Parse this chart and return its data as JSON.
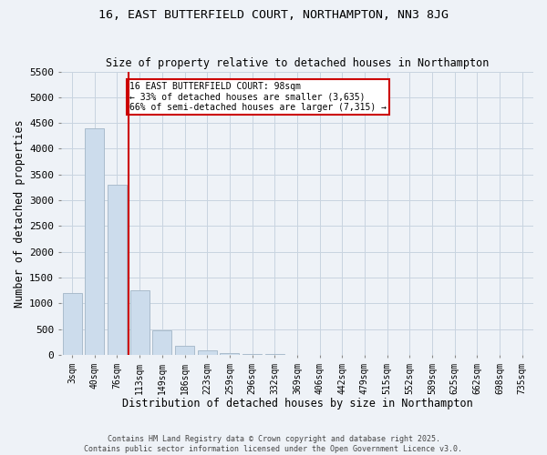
{
  "title": "16, EAST BUTTERFIELD COURT, NORTHAMPTON, NN3 8JG",
  "subtitle": "Size of property relative to detached houses in Northampton",
  "xlabel": "Distribution of detached houses by size in Northampton",
  "ylabel": "Number of detached properties",
  "bar_color": "#ccdcec",
  "bar_edgecolor": "#aabccc",
  "line_color": "#cc0000",
  "annotation_text": "16 EAST BUTTERFIELD COURT: 98sqm\n← 33% of detached houses are smaller (3,635)\n66% of semi-detached houses are larger (7,315) →",
  "annotation_box_color": "#ffffff",
  "annotation_edge_color": "#cc0000",
  "property_size_bin": 2,
  "categories": [
    "3sqm",
    "40sqm",
    "76sqm",
    "113sqm",
    "149sqm",
    "186sqm",
    "223sqm",
    "259sqm",
    "296sqm",
    "332sqm",
    "369sqm",
    "406sqm",
    "442sqm",
    "479sqm",
    "515sqm",
    "552sqm",
    "589sqm",
    "625sqm",
    "662sqm",
    "698sqm",
    "735sqm"
  ],
  "values": [
    1200,
    4400,
    3300,
    1250,
    480,
    180,
    90,
    40,
    20,
    10,
    5,
    3,
    2,
    1,
    1,
    0,
    0,
    0,
    0,
    0,
    0
  ],
  "ylim": [
    0,
    5500
  ],
  "yticks": [
    0,
    500,
    1000,
    1500,
    2000,
    2500,
    3000,
    3500,
    4000,
    4500,
    5000,
    5500
  ],
  "footer_line1": "Contains HM Land Registry data © Crown copyright and database right 2025.",
  "footer_line2": "Contains public sector information licensed under the Open Government Licence v3.0.",
  "background_color": "#eef2f7",
  "grid_color": "#c8d4e0",
  "fig_width": 6.0,
  "fig_height": 5.0,
  "dpi": 100
}
